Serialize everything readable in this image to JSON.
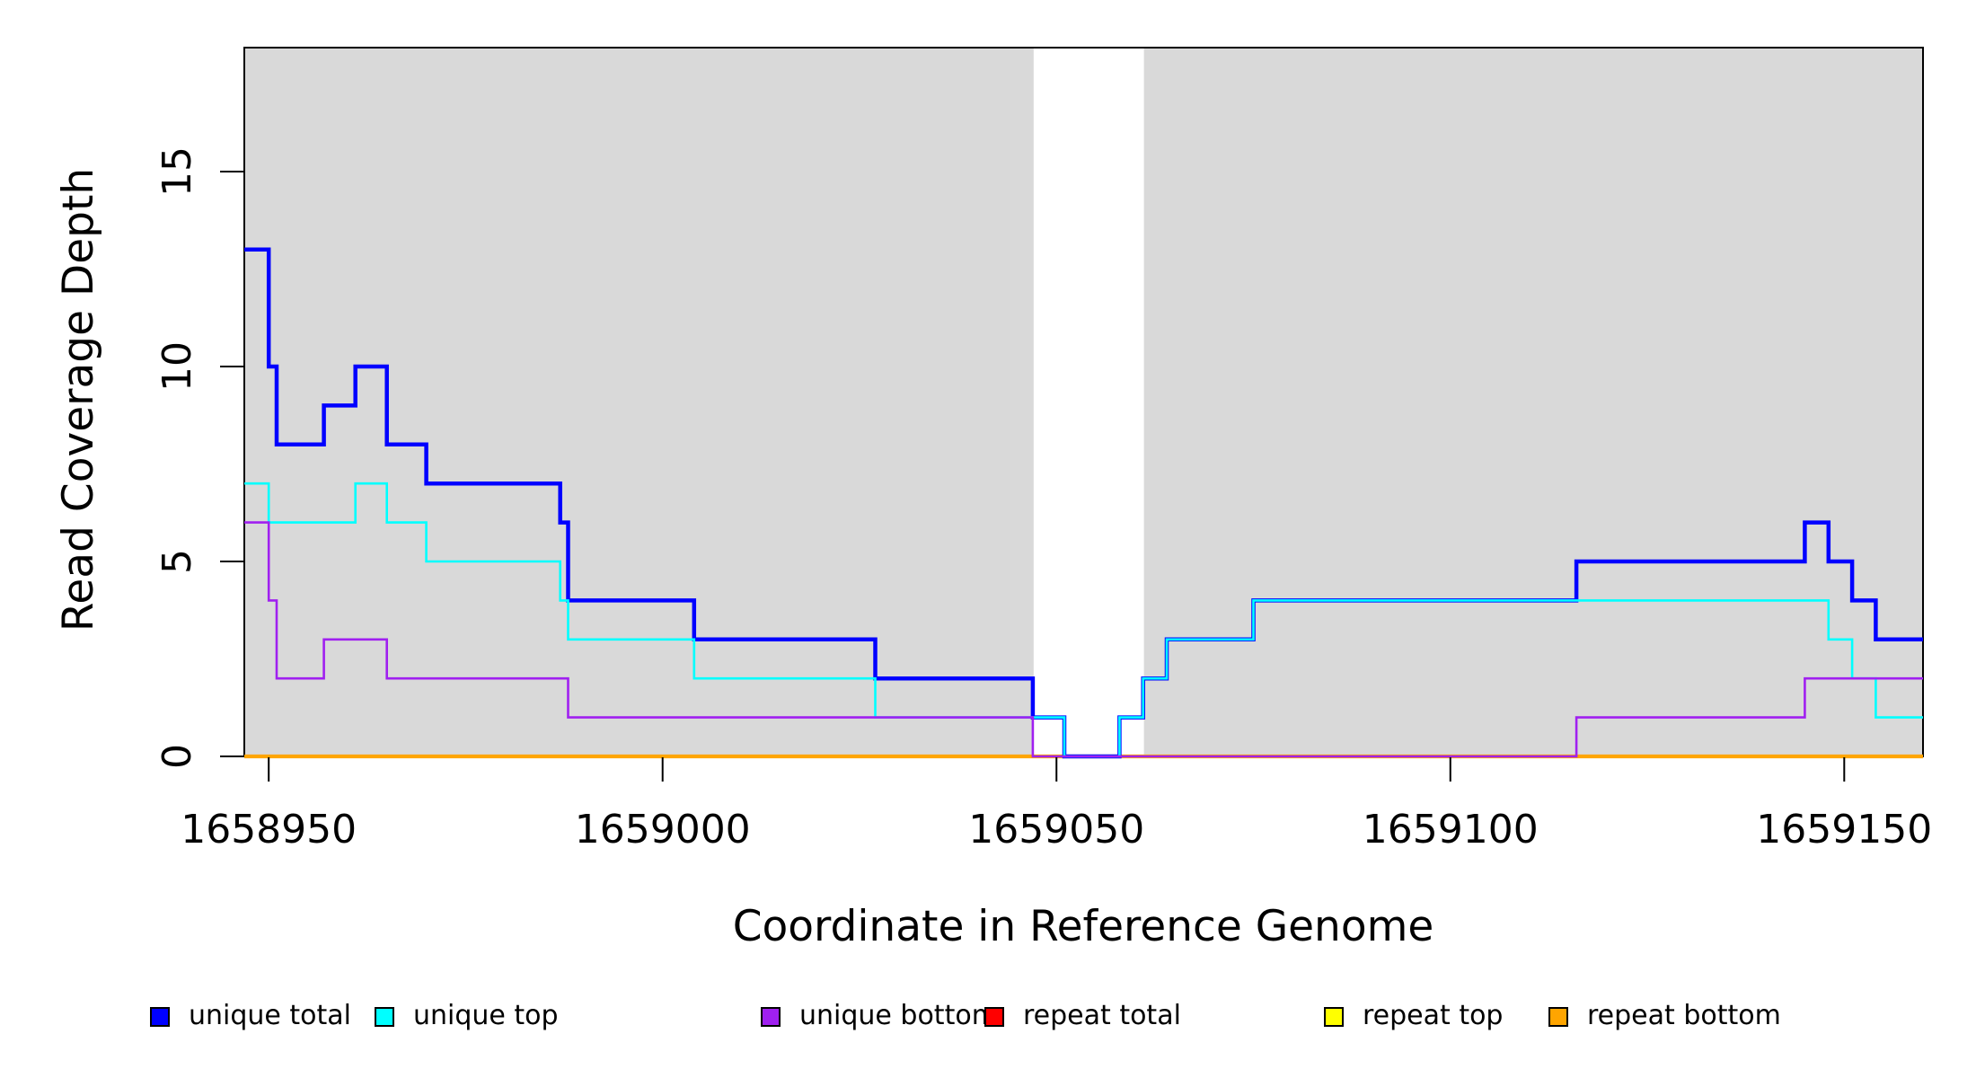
{
  "chart_data": {
    "type": "line",
    "subtype": "step-coverage",
    "title": "",
    "xlabel": "Coordinate in Reference Genome",
    "ylabel": "Read Coverage Depth",
    "x_domain": [
      1658946.9,
      1659160.0
    ],
    "ylim_drawn": [
      0,
      18.2
    ],
    "x_ticks": [
      1658950,
      1659000,
      1659050,
      1659100,
      1659150
    ],
    "x_tick_labels": [
      "1658950",
      "1659000",
      "1659050",
      "1659100",
      "1659150"
    ],
    "y_ticks": [
      0,
      5,
      10,
      15
    ],
    "y_tick_labels": [
      "0",
      "5",
      "10",
      "15"
    ],
    "grid": false,
    "shaded_color": "#d9d9d9",
    "shaded_regions_x": [
      [
        1658946.9,
        1659047.1
      ],
      [
        1659061.1,
        1659160.0
      ]
    ],
    "series": [
      {
        "name": "unique total",
        "color": "#0000ff",
        "width": 4.5,
        "points": [
          [
            1658946.9,
            13
          ],
          [
            1658950,
            10
          ],
          [
            1658951,
            8
          ],
          [
            1658957,
            9
          ],
          [
            1658961,
            10
          ],
          [
            1658965,
            8
          ],
          [
            1658970,
            7
          ],
          [
            1658987,
            6
          ],
          [
            1658988,
            4
          ],
          [
            1659004,
            3
          ],
          [
            1659027,
            2
          ],
          [
            1659047,
            1
          ],
          [
            1659051,
            0
          ],
          [
            1659058,
            1
          ],
          [
            1659061,
            2
          ],
          [
            1659064,
            3
          ],
          [
            1659075,
            4
          ],
          [
            1659116,
            5
          ],
          [
            1659145,
            6
          ],
          [
            1659148,
            5
          ],
          [
            1659151,
            4
          ],
          [
            1659154,
            3
          ]
        ]
      },
      {
        "name": "unique top",
        "color": "#00ffff",
        "width": 2.6,
        "points": [
          [
            1658946.9,
            7
          ],
          [
            1658950,
            6
          ],
          [
            1658961,
            7
          ],
          [
            1658965,
            6
          ],
          [
            1658970,
            5
          ],
          [
            1658987,
            4
          ],
          [
            1658988,
            3
          ],
          [
            1659004,
            2
          ],
          [
            1659027,
            1
          ],
          [
            1659051,
            0
          ],
          [
            1659058,
            1
          ],
          [
            1659061,
            2
          ],
          [
            1659064,
            3
          ],
          [
            1659075,
            4
          ],
          [
            1659148,
            3
          ],
          [
            1659151,
            2
          ],
          [
            1659154,
            1
          ]
        ]
      },
      {
        "name": "unique bottom",
        "color": "#a020f0",
        "width": 2.6,
        "points": [
          [
            1658946.9,
            6
          ],
          [
            1658950,
            4
          ],
          [
            1658951,
            2
          ],
          [
            1658957,
            3
          ],
          [
            1658965,
            2
          ],
          [
            1658988,
            1
          ],
          [
            1659047,
            0
          ],
          [
            1659116,
            1
          ],
          [
            1659145,
            2
          ]
        ]
      },
      {
        "name": "repeat total",
        "color": "#ff0000",
        "width": 2.6,
        "points": [
          [
            1658946.9,
            0
          ]
        ]
      },
      {
        "name": "repeat top",
        "color": "#ffff00",
        "width": 2.6,
        "points": [
          [
            1658946.9,
            0
          ]
        ]
      },
      {
        "name": "repeat bottom",
        "color": "#ffa500",
        "width": 4.2,
        "points": [
          [
            1658946.9,
            0
          ]
        ]
      }
    ],
    "legend_position": "bottom"
  },
  "legend": {
    "items": [
      {
        "label": "unique total",
        "color": "#0000ff"
      },
      {
        "label": "unique top",
        "color": "#00ffff"
      },
      {
        "label": "unique bottom",
        "color": "#a020f0"
      },
      {
        "label": "repeat total",
        "color": "#ff0000"
      },
      {
        "label": "repeat top",
        "color": "#ffff00"
      },
      {
        "label": "repeat bottom",
        "color": "#ffa500"
      }
    ]
  }
}
